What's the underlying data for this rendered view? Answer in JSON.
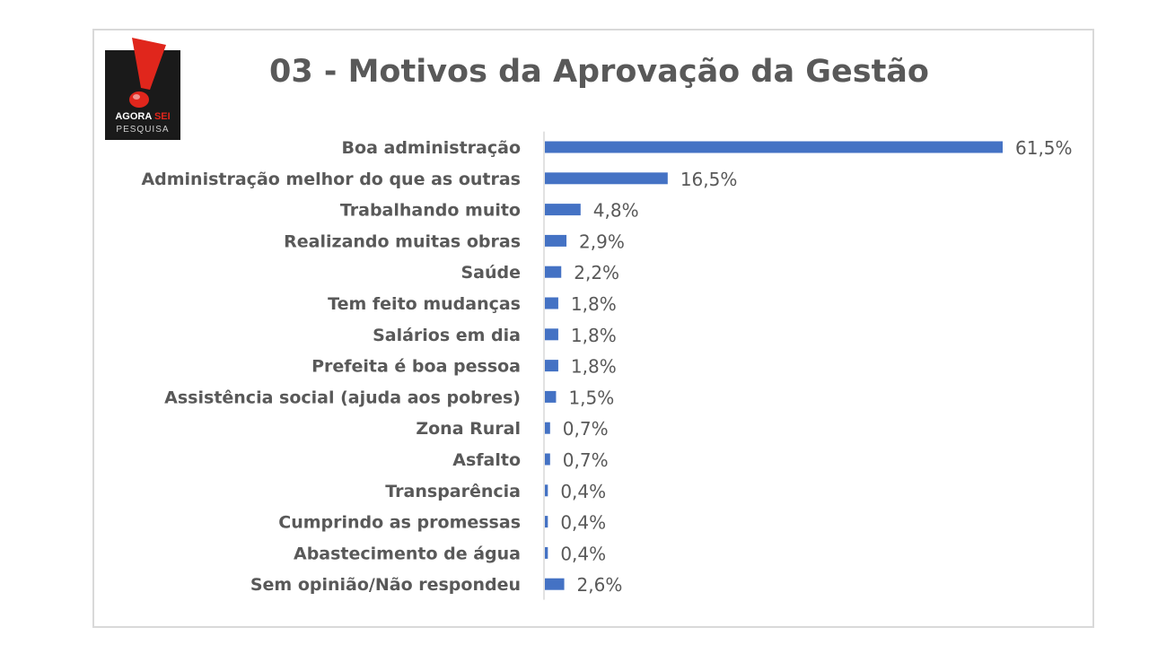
{
  "logo": {
    "line1a": "AGORA",
    "line1b": "SEI",
    "line2": "PESQUISA"
  },
  "chart_data": {
    "type": "bar",
    "orientation": "horizontal",
    "title": "03 - Motivos da Aprovação da Gestão",
    "categories": [
      "Boa administração",
      "Administração melhor do que as outras",
      "Trabalhando muito",
      "Realizando muitas obras",
      "Saúde",
      "Tem feito mudanças",
      "Salários em dia",
      "Prefeita é boa pessoa",
      "Assistência social (ajuda aos pobres)",
      "Zona Rural",
      "Asfalto",
      "Transparência",
      "Cumprindo as promessas",
      "Abastecimento de água",
      "Sem opinião/Não respondeu"
    ],
    "values": [
      61.5,
      16.5,
      4.8,
      2.9,
      2.2,
      1.8,
      1.8,
      1.8,
      1.5,
      0.7,
      0.7,
      0.4,
      0.4,
      0.4,
      2.6
    ],
    "data_labels": [
      "61,5%",
      "16,5%",
      "4,8%",
      "2,9%",
      "2,2%",
      "1,8%",
      "1,8%",
      "1,8%",
      "1,5%",
      "0,7%",
      "0,7%",
      "0,4%",
      "0,4%",
      "0,4%",
      "2,6%"
    ],
    "unit": "%",
    "xlim": [
      0,
      61.5
    ],
    "grid": false,
    "legend": "none",
    "bar_color": "#4472c4"
  }
}
